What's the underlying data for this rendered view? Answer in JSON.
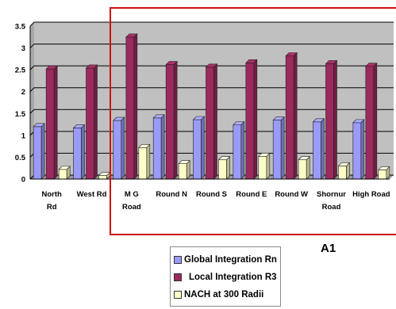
{
  "chart_data": {
    "type": "bar",
    "categories": [
      [
        "North",
        "Rd"
      ],
      [
        "West  Rd"
      ],
      [
        "M G",
        "Road"
      ],
      [
        "Round N"
      ],
      [
        "Round S"
      ],
      [
        "Round E"
      ],
      [
        "Round W"
      ],
      [
        "Shornur",
        "Road"
      ],
      [
        "High Road"
      ]
    ],
    "series": [
      {
        "name": "Global Integration Rn",
        "values": [
          1.2,
          1.17,
          1.34,
          1.4,
          1.36,
          1.24,
          1.35,
          1.31,
          1.29
        ],
        "color": "#9a9af7"
      },
      {
        "name": "Local Integration R3",
        "values": [
          2.52,
          2.54,
          3.25,
          2.62,
          2.56,
          2.66,
          2.82,
          2.64,
          2.58
        ],
        "color": "#9b2a5e"
      },
      {
        "name": "NACH at 300 Radii",
        "values": [
          0.22,
          0.08,
          0.72,
          0.35,
          0.44,
          0.52,
          0.44,
          0.3,
          0.21
        ],
        "color": "#ffffc8"
      }
    ],
    "ylim": [
      0,
      3.5
    ],
    "yticks": [
      "0",
      "0.5",
      "1",
      "1.5",
      "2",
      "2.5",
      "3",
      "3.5"
    ],
    "grid": true,
    "plot_background": "#c0c0c0",
    "legend_position": "bottom",
    "annotation": {
      "label": "A1",
      "box_color": "#d01010"
    }
  }
}
